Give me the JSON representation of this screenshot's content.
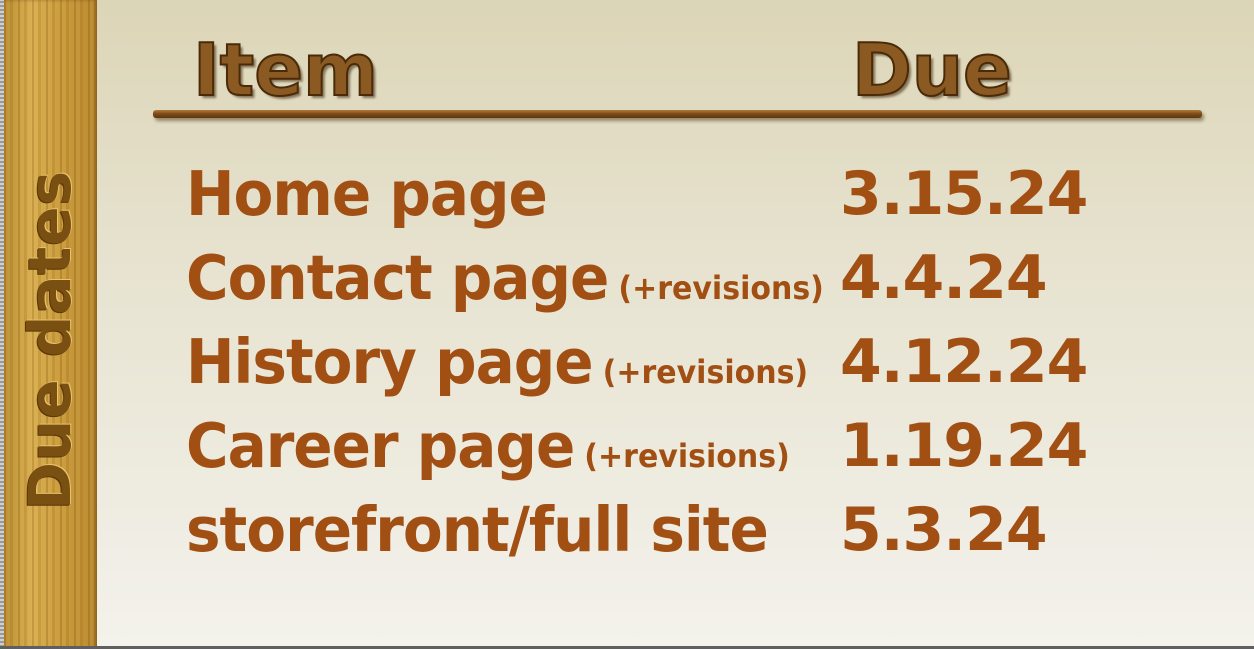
{
  "slide": {
    "side_title": "Due dates",
    "headers": {
      "item": "Item",
      "due": "Due"
    },
    "rows": [
      {
        "item": "Home page",
        "note": "",
        "due": "3.15.24"
      },
      {
        "item": "Contact page",
        "note": "(+revisions)",
        "due": "4.4.24"
      },
      {
        "item": "History page",
        "note": "(+revisions)",
        "due": "4.12.24"
      },
      {
        "item": "Career page",
        "note": "(+revisions)",
        "due": "1.19.24"
      },
      {
        "item": "storefront/full site",
        "note": "",
        "due": "5.3.24"
      }
    ]
  },
  "colors": {
    "text": "#a24f14",
    "wood": "#c99a3a",
    "header_wood": "#8a5a22"
  }
}
